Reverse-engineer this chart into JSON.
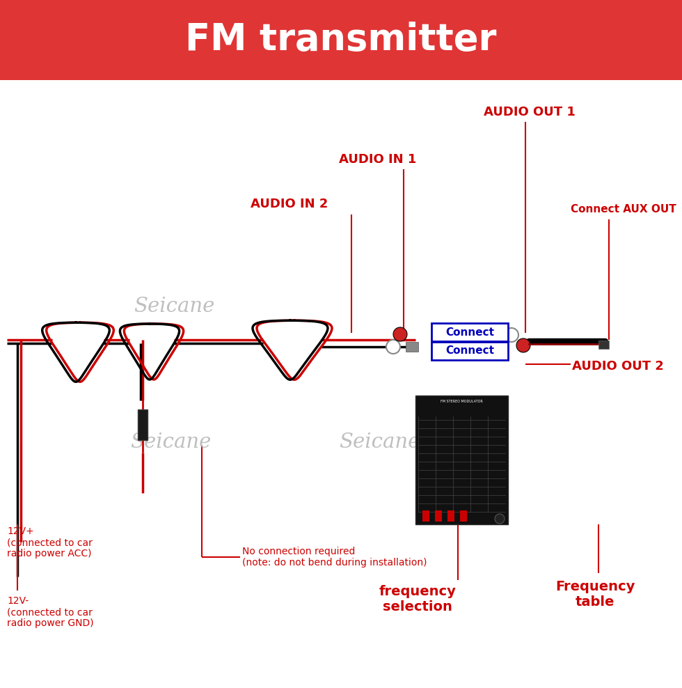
{
  "title": "FM transmitter",
  "title_color": "#FFFFFF",
  "header_bg_color": "#E03535",
  "bg_color": "#FFFFFF",
  "label_color": "#CC0000",
  "connect_color": "#0000BB",
  "seicane_color": "#B0B0B0",
  "labels": {
    "audio_out1": "AUDIO OUT 1",
    "audio_in1": "AUDIO IN 1",
    "audio_in2": "AUDIO IN 2",
    "connect_aux": "Connect AUX OUT",
    "connect1": "Connect",
    "connect2": "Connect",
    "audio_out2": "AUDIO OUT 2",
    "freq_sel": "frequency\nselection",
    "freq_table": "Frequency\ntable",
    "no_conn": "No connection required\n(note: do not bend during installation)",
    "v12plus": "12V+\n(connected to car\nradio power ACC)",
    "v12minus": "12V-\n(connected to car\nradio power GND)",
    "seicane1": "Seicane",
    "seicane2": "Seicane",
    "seicane3": "Seicane"
  },
  "figsize": [
    9.8,
    9.88
  ],
  "dpi": 100
}
